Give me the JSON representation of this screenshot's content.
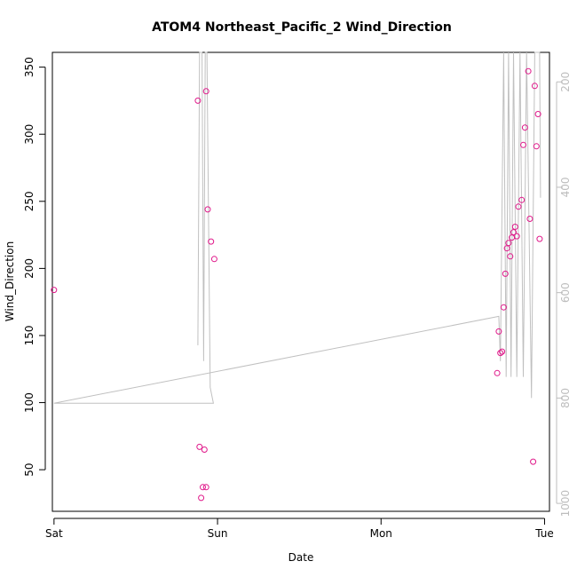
{
  "chart_data": {
    "type": "scatter",
    "title": "ATOM4 Northeast_Pacific_2 Wind_Direction",
    "xlabel": "Date",
    "ylabel": "Wind_Direction",
    "x_ticks": [
      "Sat",
      "Sun",
      "Mon",
      "Tue"
    ],
    "x_tick_days": [
      0,
      1,
      2,
      3
    ],
    "xlim_days": [
      -0.01,
      3.03
    ],
    "ylim": [
      19,
      361
    ],
    "y_ticks": [
      50,
      100,
      150,
      200,
      250,
      300,
      350
    ],
    "y2_ticks": [
      200,
      400,
      600,
      800,
      1000
    ],
    "y2lim": [
      1015,
      144
    ],
    "grid": false,
    "colors": {
      "points": "#e0188a",
      "line": "#c0c0c0",
      "axis": "#000000",
      "secondary_axis": "#bdbdbd"
    },
    "series": [
      {
        "type": "scatter",
        "points": [
          [
            0.0,
            184
          ],
          [
            0.88,
            325
          ],
          [
            0.93,
            332
          ],
          [
            0.94,
            244
          ],
          [
            0.96,
            220
          ],
          [
            0.98,
            207
          ],
          [
            0.89,
            67
          ],
          [
            0.92,
            65
          ],
          [
            0.91,
            37
          ],
          [
            0.93,
            37
          ],
          [
            0.9,
            29
          ],
          [
            2.71,
            122
          ],
          [
            2.72,
            153
          ],
          [
            2.73,
            137
          ],
          [
            2.74,
            138
          ],
          [
            2.75,
            171
          ],
          [
            2.76,
            196
          ],
          [
            2.77,
            215
          ],
          [
            2.78,
            219
          ],
          [
            2.79,
            209
          ],
          [
            2.8,
            223
          ],
          [
            2.81,
            227
          ],
          [
            2.82,
            231
          ],
          [
            2.83,
            224
          ],
          [
            2.84,
            246
          ],
          [
            2.86,
            251
          ],
          [
            2.87,
            292
          ],
          [
            2.88,
            305
          ],
          [
            2.9,
            347
          ],
          [
            2.91,
            237
          ],
          [
            2.93,
            56
          ],
          [
            2.94,
            336
          ],
          [
            2.95,
            291
          ],
          [
            2.96,
            315
          ],
          [
            2.97,
            222
          ]
        ]
      },
      {
        "type": "line",
        "axis": "right",
        "points": [
          [
            0.88,
            700
          ],
          [
            0.89,
            144
          ],
          [
            0.905,
            144
          ],
          [
            0.915,
            730
          ],
          [
            0.925,
            144
          ],
          [
            0.935,
            144
          ],
          [
            0.955,
            780
          ],
          [
            0.975,
            810
          ],
          [
            0.0,
            810
          ],
          [
            2.72,
            645
          ],
          [
            2.73,
            730
          ],
          [
            2.75,
            144
          ],
          [
            2.765,
            760
          ],
          [
            2.78,
            144
          ],
          [
            2.795,
            760
          ],
          [
            2.81,
            144
          ],
          [
            2.83,
            760
          ],
          [
            2.85,
            144
          ],
          [
            2.87,
            760
          ],
          [
            2.89,
            144
          ],
          [
            2.92,
            800
          ],
          [
            2.94,
            144
          ],
          [
            2.97,
            144
          ],
          [
            2.975,
            420
          ]
        ]
      }
    ]
  }
}
